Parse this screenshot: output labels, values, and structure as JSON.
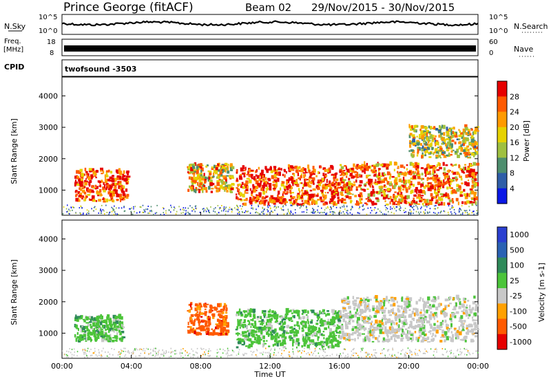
{
  "header": {
    "radar": "Prince George (fitACF)",
    "beam": "Beam 02",
    "dates": "29/Nov/2015 - 30/Nov/2015"
  },
  "noise_panel": {
    "left_label": "N.Sky",
    "right_label": "N.Search",
    "ticks_top": "10^5",
    "ticks_bottom": "10^0"
  },
  "freq_panel": {
    "left_label_1": "Freq.",
    "left_label_2": "[MHz]",
    "left_top": "18",
    "left_bottom": "8",
    "right_top": "60",
    "right_bottom": "0",
    "right_label": "Nave"
  },
  "cpid": {
    "label": "CPID",
    "value": "twofsound  -3503"
  },
  "power_colorbar": {
    "label": "Power [dB]",
    "ticks": [
      "28",
      "24",
      "20",
      "16",
      "12",
      "8",
      "4"
    ],
    "colors": [
      "#e60000",
      "#ff5a00",
      "#ff9a00",
      "#e6d200",
      "#9fc040",
      "#4e8e6e",
      "#2f5ea8",
      "#0a18e6"
    ]
  },
  "velocity_colorbar": {
    "label": "Velocity [m s-1]",
    "ticks": [
      "1000",
      "500",
      "100",
      "25",
      "-25",
      "-100",
      "-500",
      "-1000"
    ],
    "colors": [
      "#2a3fd0",
      "#2a62b4",
      "#2f8a5a",
      "#4cc43a",
      "#c8c8c8",
      "#ffa000",
      "#ff5a00",
      "#e60000"
    ]
  },
  "colors": {
    "noise_line": "#000000",
    "freq_band": "#000000"
  },
  "chart_data": [
    {
      "type": "heatmap",
      "panel": "power",
      "ylabel": "Slant Range [km]",
      "ylim": [
        200,
        4600
      ],
      "yticks": [
        1000,
        2000,
        3000,
        4000
      ],
      "xlim": [
        "00:00",
        "24:00"
      ],
      "grid": false,
      "echo_regions": [
        {
          "t_start": 0.7,
          "t_end": 3.8,
          "range_low": 600,
          "range_high": 1600,
          "power_dB": 26
        },
        {
          "t_start": 7.2,
          "t_end": 9.8,
          "range_low": 900,
          "range_high": 1800,
          "power_dB": 18
        },
        {
          "t_start": 10.0,
          "t_end": 16.0,
          "range_low": 500,
          "range_high": 1700,
          "power_dB": 24
        },
        {
          "t_start": 16.0,
          "t_end": 23.9,
          "range_low": 500,
          "range_high": 1800,
          "power_dB": 22
        },
        {
          "t_start": 20.0,
          "t_end": 23.9,
          "range_low": 2000,
          "range_high": 3000,
          "power_dB": 12
        }
      ]
    },
    {
      "type": "heatmap",
      "panel": "velocity",
      "ylabel": "Slant Range [km]",
      "xlabel": "Time UT",
      "ylim": [
        200,
        4600
      ],
      "yticks": [
        1000,
        2000,
        3000,
        4000
      ],
      "xticks": [
        "00:00",
        "04:00",
        "08:00",
        "12:00",
        "16:00",
        "20:00",
        "00:00"
      ],
      "xlim": [
        "00:00",
        "24:00"
      ],
      "grid": false,
      "echo_regions": [
        {
          "t_start": 0.7,
          "t_end": 3.5,
          "range_low": 700,
          "range_high": 1500,
          "velocity_ms": 100
        },
        {
          "t_start": 7.2,
          "t_end": 9.5,
          "range_low": 900,
          "range_high": 1900,
          "velocity_ms": -300
        },
        {
          "t_start": 10.0,
          "t_end": 16.0,
          "range_low": 500,
          "range_high": 1700,
          "velocity_ms": 100
        },
        {
          "t_start": 16.0,
          "t_end": 23.9,
          "range_low": 700,
          "range_high": 2100,
          "velocity_ms": 0
        }
      ]
    }
  ],
  "xaxis": {
    "ticks": [
      "00:00",
      "04:00",
      "08:00",
      "12:00",
      "16:00",
      "20:00",
      "00:00"
    ],
    "label": "Time UT"
  }
}
